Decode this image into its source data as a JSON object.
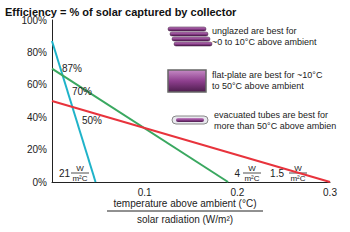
{
  "chart_data": {
    "type": "line",
    "title": "Efficiency = % of solar captured by collector",
    "x_label": {
      "numerator": "temperature above ambient (°C)",
      "denominator": "solar radiation (W/m²)"
    },
    "xlim": [
      0,
      0.3
    ],
    "xticks": [
      0.1,
      0.2,
      0.3
    ],
    "ylim": [
      0,
      100
    ],
    "yticks": [
      {
        "value": 0,
        "label": "0%"
      },
      {
        "value": 20,
        "label": "20%"
      },
      {
        "value": 40,
        "label": "40%"
      },
      {
        "value": 60,
        "label": "60%"
      },
      {
        "value": 80,
        "label": "80%"
      },
      {
        "value": 100,
        "label": "100%"
      }
    ],
    "grid": false,
    "series": [
      {
        "color": "#1fb3c9",
        "x": [
          0,
          0.047
        ],
        "values": [
          87,
          0
        ],
        "value_labels": [
          "87%",
          null
        ],
        "slope_label": {
          "value": 21,
          "unit_top": "W",
          "unit_bottom": "m²C"
        },
        "annotation": [
          "unglazed are best for",
          "~0 to 10°C above ambient"
        ]
      },
      {
        "color": "#3aa860",
        "x": [
          0,
          0.19
        ],
        "values": [
          70,
          0
        ],
        "value_labels": [
          "70%",
          null
        ],
        "slope_label": {
          "value": 4,
          "unit_top": "W",
          "unit_bottom": "m²C"
        },
        "annotation": [
          "flat-plate are best for ~10°C",
          "to 50°C above ambient"
        ]
      },
      {
        "color": "#e8333c",
        "x": [
          0,
          0.3
        ],
        "values": [
          50,
          0
        ],
        "value_labels": [
          "50%",
          null
        ],
        "slope_label": {
          "value": 1.5,
          "unit_top": "W",
          "unit_bottom": "m²C"
        },
        "annotation": [
          "evacuated tubes are best for",
          "more than 50°C above ambien"
        ]
      }
    ]
  }
}
